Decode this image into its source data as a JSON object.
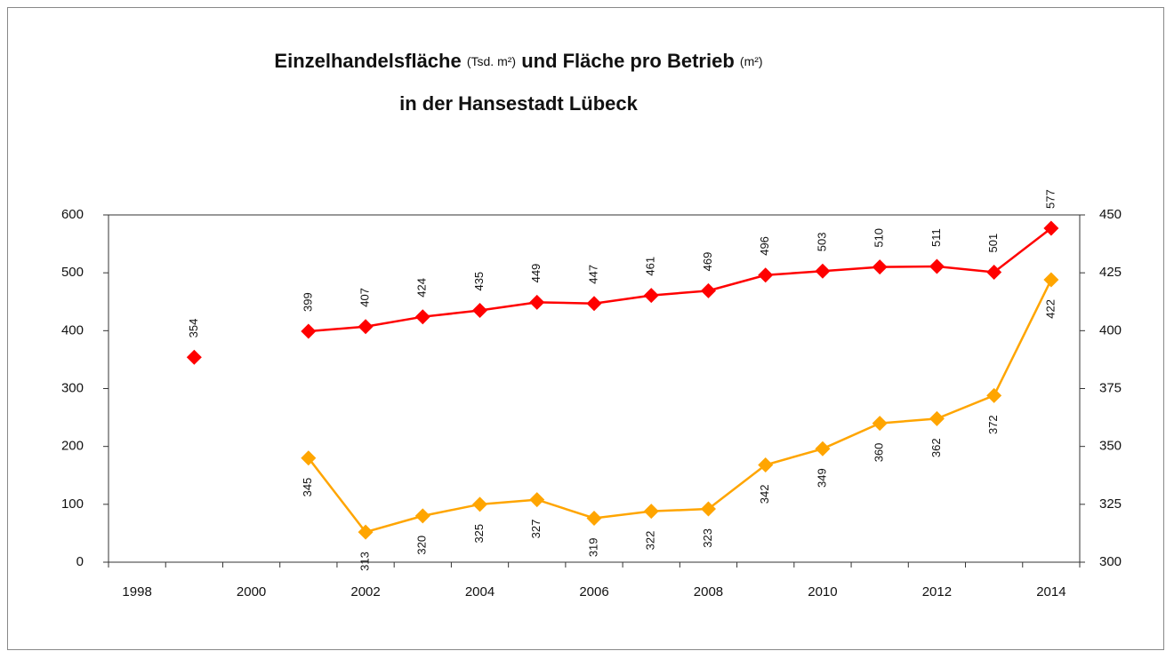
{
  "chart_data": {
    "type": "line",
    "title": [
      "Einzelhandelsfläche",
      "(Tsd. m²)",
      "und Fläche pro Betrieb",
      "(m²)"
    ],
    "subtitle": "in der Hansestadt Lübeck",
    "categories": [
      "1998",
      null,
      "2000",
      null,
      "2002",
      null,
      "2004",
      null,
      "2006",
      null,
      "2008",
      null,
      "2010",
      null,
      "2012",
      null,
      "2014"
    ],
    "series": [
      {
        "color": "#ff0000",
        "values": [
          null,
          354,
          null,
          399,
          407,
          424,
          435,
          449,
          447,
          461,
          469,
          496,
          503,
          510,
          511,
          501,
          577
        ]
      },
      {
        "color": "#ffa500",
        "axis": "y2",
        "values": [
          null,
          null,
          null,
          345,
          313,
          320,
          325,
          327,
          319,
          322,
          323,
          342,
          349,
          360,
          362,
          372,
          422
        ]
      }
    ],
    "ylim": [
      0,
      600
    ],
    "yticks": [
      0,
      100,
      200,
      300,
      400,
      500,
      600
    ],
    "y2lim": [
      300,
      450
    ],
    "y2ticks": [
      300,
      325,
      350,
      375,
      400,
      425,
      450
    ],
    "grid": false
  }
}
